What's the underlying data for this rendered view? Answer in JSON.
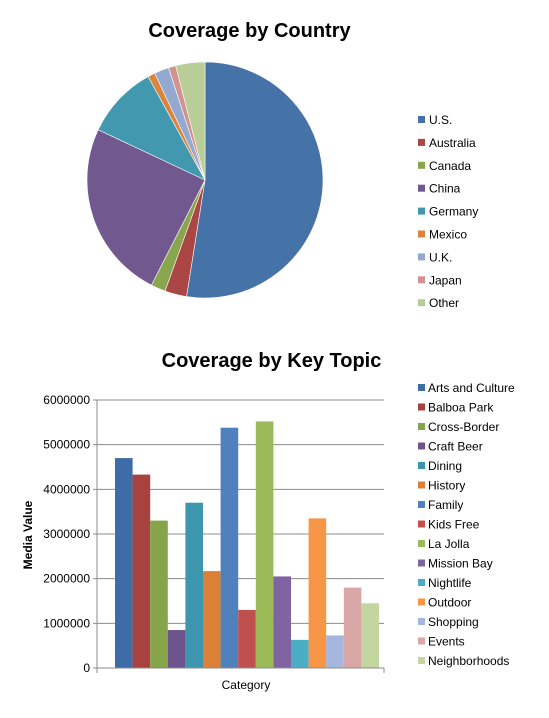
{
  "chart_data": [
    {
      "type": "pie",
      "title": "Coverage by Country",
      "legend_position": "right",
      "categories": [
        "U.S.",
        "Australia",
        "Canada",
        "China",
        "Germany",
        "Mexico",
        "U.K.",
        "Japan",
        "Other"
      ],
      "values": [
        52.5,
        3.0,
        2.0,
        24.5,
        10.0,
        1.0,
        2.0,
        1.0,
        4.0
      ],
      "colors": [
        "#4572A7",
        "#AA4643",
        "#89A54E",
        "#71588F",
        "#4198AF",
        "#DB843D",
        "#93A9CF",
        "#D19392",
        "#B9CD96"
      ]
    },
    {
      "type": "bar",
      "title": "Coverage by Key Topic",
      "xlabel": "Category",
      "ylabel": "Media Value",
      "ylim": [
        0,
        6000000
      ],
      "yticks": [
        "0",
        "1000000",
        "2000000",
        "3000000",
        "4000000",
        "5000000",
        "6000000"
      ],
      "grid": true,
      "legend_position": "right",
      "series": [
        {
          "name": "Arts and Culture",
          "value": 4700000,
          "color": "#3D6CA6"
        },
        {
          "name": "Balboa Park",
          "value": 4330000,
          "color": "#A8423F"
        },
        {
          "name": "Cross-Border",
          "value": 3300000,
          "color": "#86A44A"
        },
        {
          "name": "Craft Beer",
          "value": 850000,
          "color": "#6E548D"
        },
        {
          "name": "Dining",
          "value": 3700000,
          "color": "#3D96AE"
        },
        {
          "name": "History",
          "value": 2170000,
          "color": "#DA8137"
        },
        {
          "name": "Family",
          "value": 5380000,
          "color": "#4F81BD"
        },
        {
          "name": "Kids Free",
          "value": 1300000,
          "color": "#C0504D"
        },
        {
          "name": "La Jolla",
          "value": 5520000,
          "color": "#9BBB59"
        },
        {
          "name": "Mission Bay",
          "value": 2050000,
          "color": "#8064A2"
        },
        {
          "name": "Nightlife",
          "value": 630000,
          "color": "#4BACC6"
        },
        {
          "name": "Outdoor",
          "value": 3350000,
          "color": "#F79646"
        },
        {
          "name": "Shopping",
          "value": 730000,
          "color": "#A5B7DC"
        },
        {
          "name": "Events",
          "value": 1800000,
          "color": "#D9A7A6"
        },
        {
          "name": "Neighborhoods",
          "value": 1450000,
          "color": "#C4D6A0"
        }
      ]
    }
  ]
}
